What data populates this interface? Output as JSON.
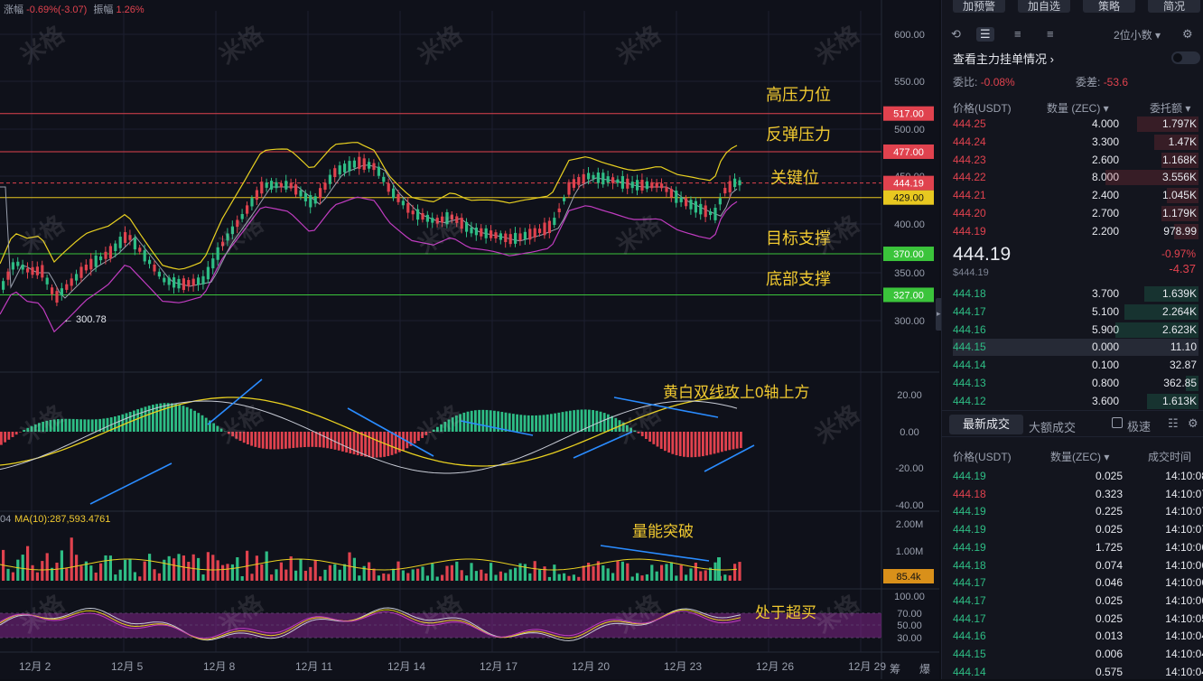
{
  "chart": {
    "header": {
      "change_label": "涨幅",
      "change_value": "-0.69%(-3.07)",
      "amp_label": "振幅",
      "amp_value": "1.26%"
    },
    "price_axis": [
      "600.00",
      "550.00",
      "500.00",
      "450.00",
      "400.00",
      "350.00",
      "300.00"
    ],
    "levels": [
      {
        "price": "517.00",
        "label": "高压力位",
        "color": "#e0424e"
      },
      {
        "price": "477.00",
        "label": "反弹压力",
        "color": "#e0424e"
      },
      {
        "price": "444.19",
        "label": "",
        "color": "#e0424e"
      },
      {
        "price": "429.00",
        "label": "关键位",
        "color": "#e8c820"
      },
      {
        "price": "370.00",
        "label": "目标支撑",
        "color": "#3bc43b"
      },
      {
        "price": "327.00",
        "label": "底部支撑",
        "color": "#3bc43b"
      }
    ],
    "low_marker": "← 300.78",
    "macd_axis": [
      "20.00",
      "0.00",
      "-20.00",
      "-40.00"
    ],
    "macd_annotation": "黄白双线攻上0轴上方",
    "vol_header": "MA(10):287,593.4761",
    "vol_prefix": "04",
    "vol_axis": [
      "2.00M",
      "1.00M"
    ],
    "vol_current": "85.4k",
    "vol_annotation": "量能突破",
    "rsi_axis": [
      "100.00",
      "70.00",
      "50.00",
      "30.00"
    ],
    "rsi_annotation": "处于超买",
    "dates": [
      "12月 2",
      "12月 5",
      "12月 8",
      "12月 11",
      "12月 14",
      "12月 17",
      "12月 20",
      "12月 23",
      "12月 26",
      "12月 29"
    ],
    "corner_labels": [
      "筹",
      "爆"
    ],
    "watermark": "米格"
  },
  "panel": {
    "top_buttons": [
      "加预警",
      "加自选",
      "策略",
      "简况"
    ],
    "decimals": "2位小数",
    "main_orders_link": "查看主力挂单情况",
    "weibi_label": "委比:",
    "weibi_value": "-0.08%",
    "weicha_label": "委差:",
    "weicha_value": "-53.6",
    "book_headers": {
      "price": "价格(USDT)",
      "qty": "数量 (ZEC)",
      "amount": "委托额"
    },
    "asks": [
      {
        "p": "444.25",
        "q": "4.000",
        "a": "1.797K",
        "w": 0.25
      },
      {
        "p": "444.24",
        "q": "3.300",
        "a": "1.47K",
        "w": 0.18
      },
      {
        "p": "444.23",
        "q": "2.600",
        "a": "1.168K",
        "w": 0.15
      },
      {
        "p": "444.22",
        "q": "8.000",
        "a": "3.556K",
        "w": 0.38
      },
      {
        "p": "444.21",
        "q": "2.400",
        "a": "1.045K",
        "w": 0.13
      },
      {
        "p": "444.20",
        "q": "2.700",
        "a": "1.179K",
        "w": 0.15
      },
      {
        "p": "444.19",
        "q": "2.200",
        "a": "978.99",
        "w": 0.1
      }
    ],
    "last_price": "444.19",
    "last_price_sub": "$444.19",
    "last_change_pct": "-0.97%",
    "last_change": "-4.37",
    "bids": [
      {
        "p": "444.18",
        "q": "3.700",
        "a": "1.639K",
        "w": 0.22
      },
      {
        "p": "444.17",
        "q": "5.100",
        "a": "2.264K",
        "w": 0.3
      },
      {
        "p": "444.16",
        "q": "5.900",
        "a": "2.623K",
        "w": 0.34
      },
      {
        "p": "444.15",
        "q": "0.000",
        "a": "11.10",
        "w": 0.0
      },
      {
        "p": "444.14",
        "q": "0.100",
        "a": "32.87",
        "w": 0.0
      },
      {
        "p": "444.13",
        "q": "0.800",
        "a": "362.85",
        "w": 0.05
      },
      {
        "p": "444.12",
        "q": "3.600",
        "a": "1.613K",
        "w": 0.21
      }
    ],
    "trade_tabs": [
      "最新成交",
      "大额成交"
    ],
    "speed_label": "极速",
    "trade_headers": {
      "price": "价格(USDT)",
      "qty": "数量(ZEC)",
      "time": "成交时间"
    },
    "trades": [
      {
        "p": "444.19",
        "q": "0.025",
        "t": "14:10:08",
        "side": "buy"
      },
      {
        "p": "444.18",
        "q": "0.323",
        "t": "14:10:07",
        "side": "sell"
      },
      {
        "p": "444.19",
        "q": "0.225",
        "t": "14:10:07",
        "side": "buy"
      },
      {
        "p": "444.19",
        "q": "0.025",
        "t": "14:10:07",
        "side": "buy"
      },
      {
        "p": "444.19",
        "q": "1.725",
        "t": "14:10:06",
        "side": "buy"
      },
      {
        "p": "444.18",
        "q": "0.074",
        "t": "14:10:06",
        "side": "buy"
      },
      {
        "p": "444.17",
        "q": "0.046",
        "t": "14:10:06",
        "side": "buy"
      },
      {
        "p": "444.17",
        "q": "0.025",
        "t": "14:10:06",
        "side": "buy"
      },
      {
        "p": "444.17",
        "q": "0.025",
        "t": "14:10:05",
        "side": "buy"
      },
      {
        "p": "444.16",
        "q": "0.013",
        "t": "14:10:04",
        "side": "buy"
      },
      {
        "p": "444.15",
        "q": "0.006",
        "t": "14:10:04",
        "side": "buy"
      },
      {
        "p": "444.14",
        "q": "0.575",
        "t": "14:10:04",
        "side": "buy"
      }
    ]
  }
}
